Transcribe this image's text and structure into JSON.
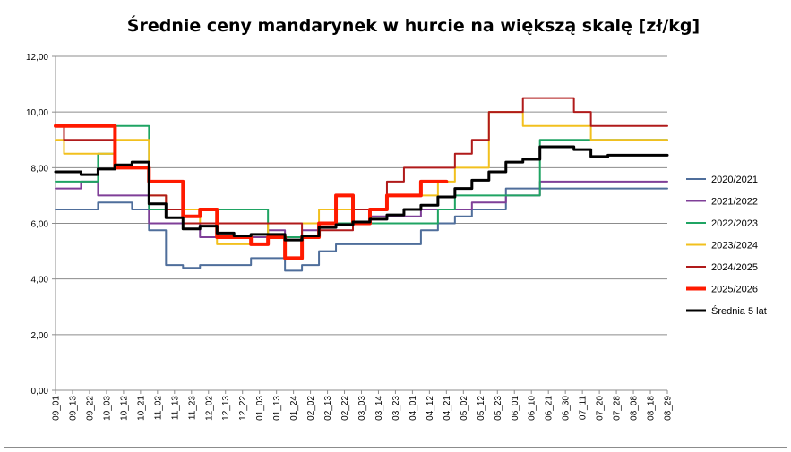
{
  "chart_data": {
    "type": "line",
    "title": "Średnie ceny mandarynek w hurcie na większą skalę [zł/kg]",
    "xlabel": "",
    "ylabel": "",
    "ylim": [
      0,
      12
    ],
    "y_ticks": [
      "0,00",
      "2,00",
      "4,00",
      "6,00",
      "8,00",
      "10,00",
      "12,00"
    ],
    "x_ticks": [
      "09_01",
      "09_13",
      "09_22",
      "10_03",
      "10_12",
      "10_21",
      "11_02",
      "11_13",
      "11_23",
      "12_02",
      "12_13",
      "12_22",
      "01_03",
      "01_13",
      "01_24",
      "02_02",
      "02_13",
      "02_22",
      "03_03",
      "03_14",
      "03_23",
      "04_01",
      "04_12",
      "04_21",
      "05_02",
      "05_12",
      "05_23",
      "06_01",
      "06_10",
      "06_21",
      "06_30",
      "07_11",
      "07_20",
      "07_28",
      "08_08",
      "08_18",
      "08_29"
    ],
    "grid": "horizontal",
    "legend_position": "right",
    "series": [
      {
        "name": "2020/2021",
        "color": "#4F6E9B",
        "width": 2,
        "values": [
          6.5,
          6.5,
          6.5,
          6.75,
          6.75,
          6.5,
          5.75,
          4.5,
          4.4,
          4.5,
          4.5,
          4.5,
          4.75,
          4.75,
          4.3,
          4.5,
          5.0,
          5.25,
          5.25,
          5.25,
          5.25,
          5.25,
          5.75,
          6.0,
          6.25,
          6.5,
          6.5,
          7.25,
          7.25,
          7.25,
          7.25,
          7.25,
          7.25,
          7.25,
          7.25,
          7.25,
          7.25
        ]
      },
      {
        "name": "2021/2022",
        "color": "#7F3F98",
        "width": 2,
        "values": [
          7.25,
          7.25,
          7.5,
          7.0,
          7.0,
          7.0,
          6.0,
          6.0,
          6.0,
          5.5,
          5.5,
          5.5,
          5.5,
          5.75,
          5.5,
          5.75,
          6.0,
          6.0,
          6.0,
          6.25,
          6.25,
          6.25,
          6.5,
          6.5,
          6.5,
          6.75,
          6.75,
          7.0,
          7.0,
          7.5,
          7.5,
          7.5,
          7.5,
          7.5,
          7.5,
          7.5,
          7.5
        ]
      },
      {
        "name": "2022/2023",
        "color": "#1FA463",
        "width": 2,
        "values": [
          7.5,
          7.5,
          7.5,
          8.5,
          9.5,
          9.5,
          6.5,
          6.5,
          6.5,
          6.5,
          6.5,
          6.5,
          6.5,
          5.5,
          5.5,
          5.5,
          6.0,
          6.0,
          6.0,
          6.0,
          6.0,
          6.0,
          6.0,
          6.5,
          7.0,
          7.0,
          7.0,
          7.0,
          7.0,
          9.0,
          9.0,
          9.0,
          9.0,
          9.0,
          9.0,
          9.0,
          9.0
        ]
      },
      {
        "name": "2023/2024",
        "color": "#F2C01E",
        "width": 2,
        "values": [
          9.0,
          8.5,
          8.5,
          8.5,
          9.0,
          9.0,
          7.0,
          6.5,
          6.5,
          6.0,
          5.25,
          5.25,
          5.25,
          6.0,
          6.0,
          6.0,
          6.5,
          6.5,
          6.5,
          6.5,
          7.0,
          7.0,
          7.0,
          7.5,
          8.0,
          8.0,
          10.0,
          10.0,
          9.5,
          9.5,
          9.5,
          9.5,
          9.0,
          9.0,
          9.0,
          9.0,
          9.0
        ]
      },
      {
        "name": "2024/2025",
        "color": "#B01A1A",
        "width": 2,
        "values": [
          9.5,
          9.0,
          9.0,
          9.0,
          8.0,
          8.0,
          7.0,
          6.5,
          6.0,
          6.0,
          6.0,
          6.0,
          6.0,
          6.0,
          6.0,
          5.5,
          5.75,
          5.75,
          6.5,
          6.5,
          7.5,
          8.0,
          8.0,
          8.0,
          8.5,
          9.0,
          10.0,
          10.0,
          10.5,
          10.5,
          10.5,
          10.0,
          9.5,
          9.5,
          9.5,
          9.5,
          9.5
        ]
      },
      {
        "name": "2025/2026",
        "color": "#FF1A00",
        "width": 4,
        "values": [
          9.5,
          9.5,
          9.5,
          9.5,
          8.0,
          8.0,
          7.5,
          7.5,
          6.25,
          6.5,
          5.5,
          5.5,
          5.25,
          5.5,
          4.75,
          5.5,
          6.0,
          7.0,
          6.0,
          6.5,
          7.0,
          7.0,
          7.5,
          7.5
        ]
      },
      {
        "name": "Średnia 5 lat",
        "color": "#000000",
        "width": 3,
        "values": [
          7.85,
          7.85,
          7.75,
          7.95,
          8.1,
          8.2,
          6.7,
          6.2,
          5.8,
          5.9,
          5.65,
          5.55,
          5.6,
          5.6,
          5.4,
          5.55,
          5.85,
          5.95,
          6.05,
          6.15,
          6.3,
          6.5,
          6.65,
          6.95,
          7.25,
          7.55,
          7.85,
          8.2,
          8.3,
          8.75,
          8.75,
          8.65,
          8.4,
          8.45,
          8.45,
          8.45,
          8.45
        ]
      }
    ]
  }
}
